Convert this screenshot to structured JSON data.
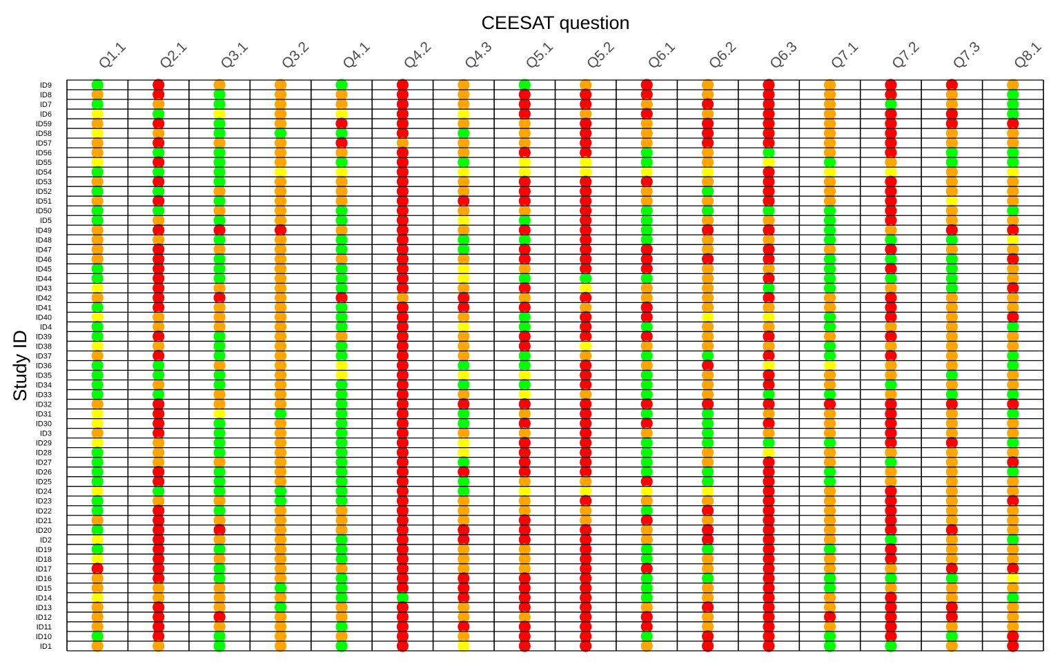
{
  "chart_data": {
    "type": "heatmap",
    "title": "CEESAT question",
    "xlabel": "CEESAT question",
    "ylabel": "Study ID",
    "grid": true,
    "x_axis_position": "top",
    "columns": [
      "Q1.1",
      "Q2.1",
      "Q3.1",
      "Q3.2",
      "Q4.1",
      "Q4.2",
      "Q4.3",
      "Q5.1",
      "Q5.2",
      "Q6.1",
      "Q6.2",
      "Q6.3",
      "Q7.1",
      "Q7.2",
      "Q7.3",
      "Q8.1"
    ],
    "rows": [
      "ID9",
      "ID8",
      "ID7",
      "ID6",
      "ID59",
      "ID58",
      "ID57",
      "ID56",
      "ID55",
      "ID54",
      "ID53",
      "ID52",
      "ID51",
      "ID50",
      "ID5",
      "ID49",
      "ID48",
      "ID47",
      "ID46",
      "ID45",
      "ID44",
      "ID43",
      "ID42",
      "ID41",
      "ID40",
      "ID4",
      "ID39",
      "ID38",
      "ID37",
      "ID36",
      "ID35",
      "ID34",
      "ID33",
      "ID32",
      "ID31",
      "ID30",
      "ID3",
      "ID29",
      "ID28",
      "ID27",
      "ID26",
      "ID25",
      "ID24",
      "ID23",
      "ID22",
      "ID21",
      "ID20",
      "ID2",
      "ID19",
      "ID18",
      "ID17",
      "ID16",
      "ID15",
      "ID14",
      "ID13",
      "ID12",
      "ID11",
      "ID10",
      "ID1"
    ],
    "legend_colors": {
      "G": "#00ff00",
      "Y": "#ffff00",
      "O": "#ffa500",
      "R": "#ff0000"
    },
    "cells": [
      "GROOGROGORORORRO",
      "ORGOORORRROROROG",
      "GOGOORORRORROGOG",
      "YGYOYRYRORORORRG",
      "ORGORROORORRORRR",
      "YOGGGRGORORROROO",
      "OROOROOORORROROO",
      "OGGOORORRGOGORGG",
      "YRGOGRGYYGOYGOGG",
      "GGGYYRYYYYYRYYOY",
      "ORGOORORRROROROO",
      "GGOOORORROGROROO",
      "ORGOORRRROORORYO",
      "GGOOGROORGGGGROG",
      "GOGOGRYGRGOOGROO",
      "ORRRORORRGRRGORR",
      "OOGOGRGGRGOOGGGY",
      "OROOGRGRRROROROO",
      "ORGOORORRRRRGGGR",
      "GRGOGRYORROOGRGO",
      "GRGOGRYGGGORGGGO",
      "YROOGRORYOOGGOGR",
      "ORROROROROOROROO",
      "GROOGRRROROOOROO",
      "YOOOGROGRRYYGROR",
      "GOOOGRYGRGOOGOOG",
      "GRGOORORRROROROO",
      "YOGOGRORYOOOGOOO",
      "ORGOGROGOGGRGROG",
      "GGOOYRGGRORYYOOG",
      "GGGOYRYYRGOROOGO",
      "GOGOGRGGRGOROGOO",
      "GGOOGROYOGOGGOGG",
      "OROOGRRRRRRRRRRR",
      "YRYGGRGORGGOOROG",
      "YRGOGRGRRRGROROO",
      "ORGOGROOROGOOROO",
      "YOGOGRYRRGGGGRRG",
      "GOGOGRYRRGOYOOOO",
      "GOOOGRGRRGOROGOR",
      "GRGOGRRRRGGRGOOG",
      "GRGOGRGOORGRGOOO",
      "YGGGGRGYYYYROROO",
      "GOOGGROOROOROROR",
      "GRGOOROOOGRROROO",
      "OROOOROROROROROO",
      "GRROORRRRORRORRO",
      "YROOGRRRRORROGOG",
      "GRGOGROORGGRGROO",
      "YROOGROORGOROROO",
      "RRGOOROORROROORR",
      "ORGOGRRRRGGRGGGY",
      "OOOGGRRRRGORGOOO",
      "YOOOGGRRRGOROROG",
      "OROGORORRORRORRO",
      "ORROOROORRORRRRO",
      "OROOGRRRRROROROO",
      "GRGOORORRGRRGRGR",
      "OOGOGRYRRORRGGOR"
    ]
  }
}
